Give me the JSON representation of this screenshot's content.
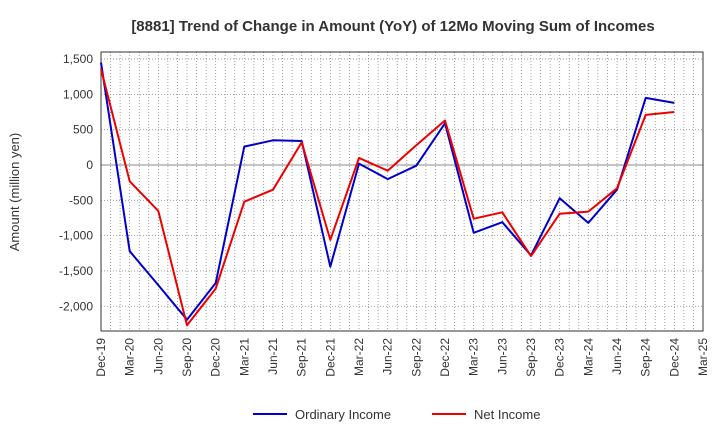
{
  "chart_data": {
    "type": "line",
    "title": "[8881]  Trend of Change in Amount (YoY) of 12Mo Moving Sum of Incomes",
    "xlabel": "",
    "ylabel": "Amount (million yen)",
    "ylim": [
      -2350,
      1600
    ],
    "yticks": [
      -2000,
      -1500,
      -1000,
      -500,
      0,
      500,
      1000,
      1500
    ],
    "ytick_labels": [
      "-2,000",
      "-1,500",
      "-1,000",
      "-500",
      "0",
      "500",
      "1,000",
      "1,500"
    ],
    "x_ticks": [
      "Dec-19",
      "Mar-20",
      "Jun-20",
      "Sep-20",
      "Dec-20",
      "Mar-21",
      "Jun-21",
      "Sep-21",
      "Dec-21",
      "Mar-22",
      "Jun-22",
      "Sep-22",
      "Dec-22",
      "Mar-23",
      "Jun-23",
      "Sep-23",
      "Dec-23",
      "Mar-24",
      "Jun-24",
      "Sep-24",
      "Dec-24",
      "Mar-25"
    ],
    "grid": true,
    "legend_position": "bottom",
    "series": [
      {
        "name": "Ordinary Income",
        "color": "#0000cc",
        "values": [
          1450,
          -1220,
          -1700,
          -2190,
          -1670,
          260,
          350,
          340,
          -1440,
          20,
          -200,
          -10,
          590,
          -960,
          -810,
          -1280,
          -470,
          -820,
          -350,
          950,
          880
        ]
      },
      {
        "name": "Net Income",
        "color": "#ee0000",
        "values": [
          1360,
          -230,
          -650,
          -2270,
          -1750,
          -520,
          -350,
          320,
          -1060,
          100,
          -80,
          280,
          630,
          -760,
          -670,
          -1290,
          -690,
          -660,
          -330,
          710,
          750
        ]
      }
    ]
  }
}
